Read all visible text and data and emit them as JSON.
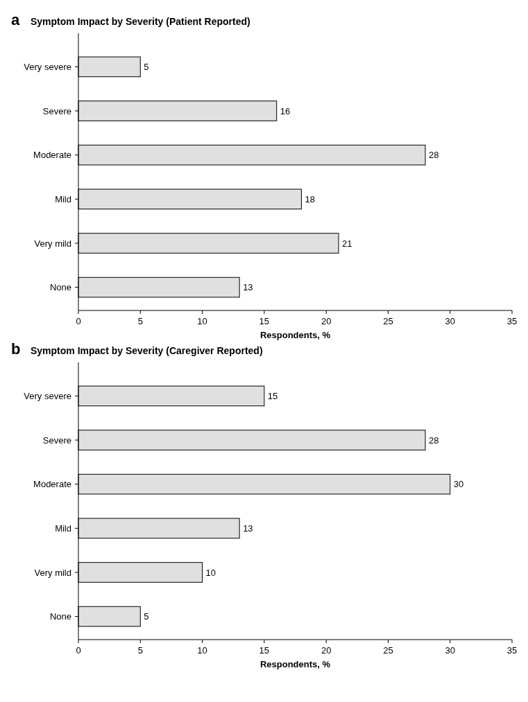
{
  "chart_data": [
    {
      "type": "bar",
      "orientation": "horizontal",
      "title": "Symptom Impact by Severity (Patient Reported)",
      "annotations": [
        "a"
      ],
      "categories": [
        "Very severe",
        "Severe",
        "Moderate",
        "Mild",
        "Very mild",
        "None"
      ],
      "values": [
        5,
        16,
        28,
        18,
        21,
        13
      ],
      "color": "#e0e0e0",
      "xlim": [
        0,
        35
      ],
      "xticks": [
        0,
        5,
        10,
        15,
        20,
        25,
        30,
        35
      ],
      "xlabel": "Respondents, %",
      "data_labels": true
    },
    {
      "type": "bar",
      "orientation": "horizontal",
      "title": "Symptom Impact by Severity (Caregiver Reported)",
      "annotations": [
        "b"
      ],
      "categories": [
        "Very severe",
        "Severe",
        "Moderate",
        "Mild",
        "Very mild",
        "None"
      ],
      "values": [
        15,
        28,
        30,
        13,
        10,
        5
      ],
      "color": "#e0e0e0",
      "xlim": [
        0,
        35
      ],
      "xticks": [
        0,
        5,
        10,
        15,
        20,
        25,
        30,
        35
      ],
      "xlabel": "Respondents, %",
      "data_labels": true
    }
  ]
}
